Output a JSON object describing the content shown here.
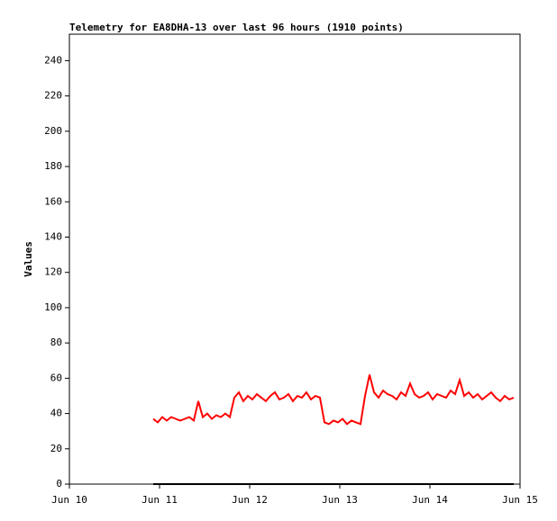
{
  "chart_data": {
    "type": "line",
    "title": "Telemetry for EA8DHA-13 over last 96 hours (1910 points)",
    "y_label": "Values",
    "xlim": [
      0,
      5
    ],
    "xticks": [
      {
        "value": 0,
        "label": "Jun 10"
      },
      {
        "value": 1,
        "label": "Jun 11"
      },
      {
        "value": 2,
        "label": "Jun 12"
      },
      {
        "value": 3,
        "label": "Jun 13"
      },
      {
        "value": 4,
        "label": "Jun 14"
      },
      {
        "value": 5,
        "label": "Jun 15"
      }
    ],
    "ylim": [
      0,
      255
    ],
    "yticks": [
      0,
      20,
      40,
      60,
      80,
      100,
      120,
      140,
      160,
      180,
      200,
      220,
      240
    ],
    "grid": false,
    "series": [
      {
        "color": "#ff0000",
        "x": [
          0.93,
          0.98,
          1.03,
          1.08,
          1.13,
          1.18,
          1.23,
          1.28,
          1.33,
          1.38,
          1.43,
          1.48,
          1.53,
          1.58,
          1.63,
          1.68,
          1.73,
          1.78,
          1.83,
          1.88,
          1.93,
          1.98,
          2.03,
          2.08,
          2.13,
          2.18,
          2.23,
          2.28,
          2.33,
          2.38,
          2.43,
          2.48,
          2.53,
          2.58,
          2.63,
          2.68,
          2.73,
          2.78,
          2.83,
          2.88,
          2.93,
          2.98,
          3.03,
          3.08,
          3.13,
          3.18,
          3.23,
          3.28,
          3.33,
          3.38,
          3.43,
          3.48,
          3.53,
          3.58,
          3.63,
          3.68,
          3.73,
          3.78,
          3.83,
          3.88,
          3.93,
          3.98,
          4.03,
          4.08,
          4.13,
          4.18,
          4.23,
          4.28,
          4.33,
          4.38,
          4.43,
          4.48,
          4.53,
          4.58,
          4.63,
          4.68,
          4.73,
          4.78,
          4.83,
          4.88,
          4.93
        ],
        "values": [
          37,
          35,
          38,
          36,
          38,
          37,
          36,
          37,
          38,
          36,
          47,
          38,
          40,
          37,
          39,
          38,
          40,
          38,
          49,
          52,
          47,
          50,
          48,
          51,
          49,
          47,
          50,
          52,
          48,
          49,
          51,
          47,
          50,
          49,
          52,
          48,
          50,
          49,
          35,
          34,
          36,
          35,
          37,
          34,
          36,
          35,
          34,
          50,
          62,
          52,
          49,
          53,
          51,
          50,
          48,
          52,
          50,
          57,
          51,
          49,
          50,
          52,
          48,
          51,
          50,
          49,
          53,
          51,
          59,
          50,
          52,
          49,
          51,
          48,
          50,
          52,
          49,
          47,
          50,
          48,
          49
        ]
      },
      {
        "color": "#000000",
        "x": [
          0.93,
          4.93
        ],
        "values": [
          0,
          0
        ]
      }
    ]
  }
}
